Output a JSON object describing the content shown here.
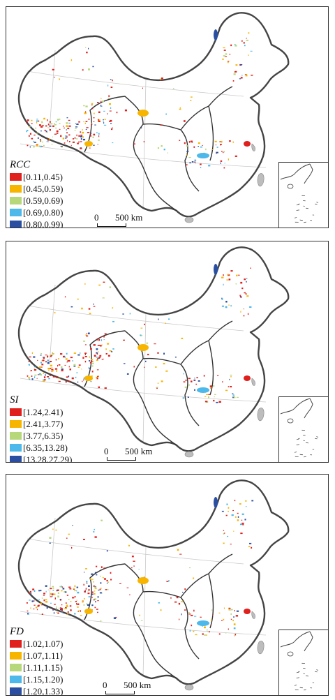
{
  "colors": [
    "#e0201c",
    "#f7b500",
    "#b6d77a",
    "#4db8ea",
    "#2a4fa2"
  ],
  "scale_bar": {
    "zero": "0",
    "distance": "500 km"
  },
  "panels": [
    {
      "index_name": "RCC",
      "legend": [
        "[0.11,0.45)",
        "[0.45,0.59)",
        "[0.59,0.69)",
        "[0.69,0.80)",
        "[0.80,0.99)"
      ]
    },
    {
      "index_name": "SI",
      "legend": [
        "[1.24,2.41)",
        "[2.41,3.77)",
        "[3.77,6.35)",
        "[6.35,13.28)",
        "[13.28,27.29)"
      ]
    },
    {
      "index_name": "FD",
      "legend": [
        "[1.02,1.07)",
        "[1.07,1.11)",
        "[1.11,1.15)",
        "[1.15,1.20)",
        "[1.20,1.33)"
      ]
    }
  ]
}
